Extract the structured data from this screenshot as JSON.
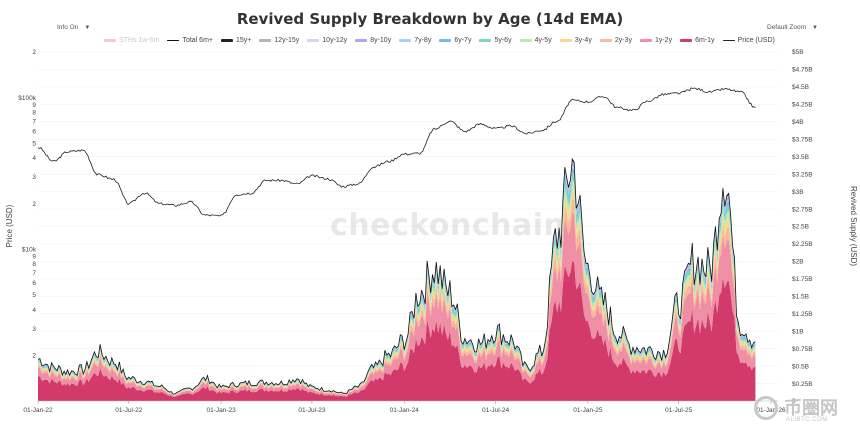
{
  "title": "Revived Supply Breakdown by Age (14d EMA)",
  "controls": {
    "info": "Info On",
    "zoom": "Default Zoom"
  },
  "watermark": "checkonchain",
  "corner_logo": {
    "brand": "币圈网",
    "url": "ALIBTC.COM"
  },
  "colors": {
    "price": "#222222",
    "total": "#111111",
    "bands": [
      "#d13a6a",
      "#ef8fa6",
      "#f6b99a",
      "#f6d98c",
      "#bfe8b4",
      "#7fd6bf",
      "#78b9e9",
      "#a7d0f3",
      "#b6a3ef",
      "#d9d0f5",
      "#b6b6b6",
      "#222222"
    ]
  },
  "chart_data": {
    "type": "area",
    "title": "Revived Supply Breakdown by Age (14d EMA)",
    "y_left": {
      "label": "Price (USD)",
      "scale": "log",
      "range": [
        1000,
        200000
      ],
      "ticks": [
        "2",
        "3",
        "4",
        "5",
        "6",
        "7",
        "8",
        "9",
        "$10k",
        "2",
        "3",
        "4",
        "5",
        "6",
        "7",
        "8",
        "9",
        "$100k",
        "2"
      ]
    },
    "y_right": {
      "label": "Revived Supply (USD)",
      "range": [
        0,
        5000000000
      ],
      "ticks": [
        "0",
        "$0.25B",
        "$0.5B",
        "$0.75B",
        "$1B",
        "$1.25B",
        "$1.5B",
        "$1.75B",
        "$2B",
        "$2.25B",
        "$2.5B",
        "$2.75B",
        "$3B",
        "$3.25B",
        "$3.5B",
        "$3.75B",
        "$4B",
        "$4.25B",
        "$4.5B",
        "$4.75B",
        "$5B"
      ]
    },
    "x_ticks": [
      "01-Jan-22",
      "01-Jul-22",
      "01-Jan-23",
      "01-Jul-23",
      "01-Jan-24",
      "01-Jul-24",
      "01-Jan-25",
      "01-Jul-25",
      "01-Jan-26"
    ],
    "legend": [
      {
        "name": "STHs 1w-6m",
        "color": "#f3c9d6",
        "visible": false
      },
      {
        "name": "Total 6m+",
        "color": "#111111",
        "style": "line"
      },
      {
        "name": "15y+",
        "color": "#222222"
      },
      {
        "name": "12y-15y",
        "color": "#b6b6b6"
      },
      {
        "name": "10y-12y",
        "color": "#d9d0f5"
      },
      {
        "name": "8y-10y",
        "color": "#b6a3ef"
      },
      {
        "name": "7y-8y",
        "color": "#a7d0f3"
      },
      {
        "name": "6y-7y",
        "color": "#78b9e9"
      },
      {
        "name": "5y-6y",
        "color": "#7fd6bf"
      },
      {
        "name": "4y-5y",
        "color": "#bfe8b4"
      },
      {
        "name": "3y-4y",
        "color": "#f6d98c"
      },
      {
        "name": "2y-3y",
        "color": "#f6b99a"
      },
      {
        "name": "1y-2y",
        "color": "#ef8fa6"
      },
      {
        "name": "6m-1y",
        "color": "#d13a6a"
      },
      {
        "name": "Price (USD)",
        "color": "#222222",
        "style": "line"
      }
    ],
    "price_series": {
      "x": [
        "2022-01-01",
        "2022-02-01",
        "2022-03-01",
        "2022-04-01",
        "2022-05-01",
        "2022-06-01",
        "2022-07-01",
        "2022-08-01",
        "2022-09-01",
        "2022-10-01",
        "2022-11-01",
        "2022-12-01",
        "2023-01-01",
        "2023-02-01",
        "2023-03-01",
        "2023-04-01",
        "2023-05-01",
        "2023-06-01",
        "2023-07-01",
        "2023-08-01",
        "2023-09-01",
        "2023-10-01",
        "2023-11-01",
        "2023-12-01",
        "2024-01-01",
        "2024-02-01",
        "2024-03-01",
        "2024-04-01",
        "2024-05-01",
        "2024-06-01",
        "2024-07-01",
        "2024-08-01",
        "2024-09-01",
        "2024-10-01",
        "2024-11-01",
        "2024-12-01",
        "2025-01-01",
        "2025-02-01",
        "2025-03-01",
        "2025-04-01",
        "2025-05-01",
        "2025-06-01",
        "2025-07-01",
        "2025-08-01",
        "2025-09-01",
        "2025-10-01",
        "2025-11-01",
        "2025-12-01"
      ],
      "y": [
        47000,
        38000,
        44000,
        45000,
        31000,
        29000,
        20000,
        23500,
        20000,
        19500,
        20500,
        16800,
        16600,
        23000,
        23500,
        28500,
        28500,
        27000,
        30500,
        29200,
        26000,
        27000,
        35000,
        38000,
        42500,
        43000,
        62000,
        70000,
        60000,
        67000,
        62500,
        65000,
        58000,
        61000,
        70000,
        96000,
        94000,
        102000,
        86000,
        82500,
        95000,
        105000,
        107000,
        115000,
        109000,
        114000,
        109000,
        86000
      ]
    },
    "revived_supply_total": {
      "x": [
        "2022-01-01",
        "2022-02-01",
        "2022-03-01",
        "2022-04-01",
        "2022-05-01",
        "2022-06-01",
        "2022-07-01",
        "2022-08-01",
        "2022-09-01",
        "2022-10-01",
        "2022-11-01",
        "2022-12-01",
        "2023-01-01",
        "2023-02-01",
        "2023-03-01",
        "2023-04-01",
        "2023-05-01",
        "2023-06-01",
        "2023-07-01",
        "2023-08-01",
        "2023-09-01",
        "2023-10-01",
        "2023-11-01",
        "2023-12-01",
        "2024-01-01",
        "2024-02-01",
        "2024-03-01",
        "2024-04-01",
        "2024-05-01",
        "2024-06-01",
        "2024-07-01",
        "2024-08-01",
        "2024-09-01",
        "2024-10-01",
        "2024-11-01",
        "2024-12-01",
        "2025-01-01",
        "2025-02-01",
        "2025-03-01",
        "2025-04-01",
        "2025-05-01",
        "2025-06-01",
        "2025-07-01",
        "2025-08-01",
        "2025-09-01",
        "2025-10-01",
        "2025-11-01",
        "2025-12-01"
      ],
      "y": [
        600000000,
        480000000,
        420000000,
        450000000,
        700000000,
        560000000,
        330000000,
        280000000,
        210000000,
        110000000,
        180000000,
        320000000,
        200000000,
        240000000,
        260000000,
        270000000,
        260000000,
        320000000,
        200000000,
        160000000,
        110000000,
        200000000,
        470000000,
        650000000,
        870000000,
        1560000000,
        1900000000,
        1550000000,
        900000000,
        820000000,
        1000000000,
        880000000,
        470000000,
        700000000,
        2370000000,
        3400000000,
        1900000000,
        1400000000,
        980000000,
        780000000,
        740000000,
        700000000,
        1400000000,
        2000000000,
        1900000000,
        3300000000,
        1100000000,
        850000000
      ]
    },
    "band_shares": [
      0.58,
      0.2,
      0.06,
      0.04,
      0.035,
      0.03,
      0.02,
      0.01,
      0.012,
      0.003,
      0.005,
      0.005
    ]
  }
}
